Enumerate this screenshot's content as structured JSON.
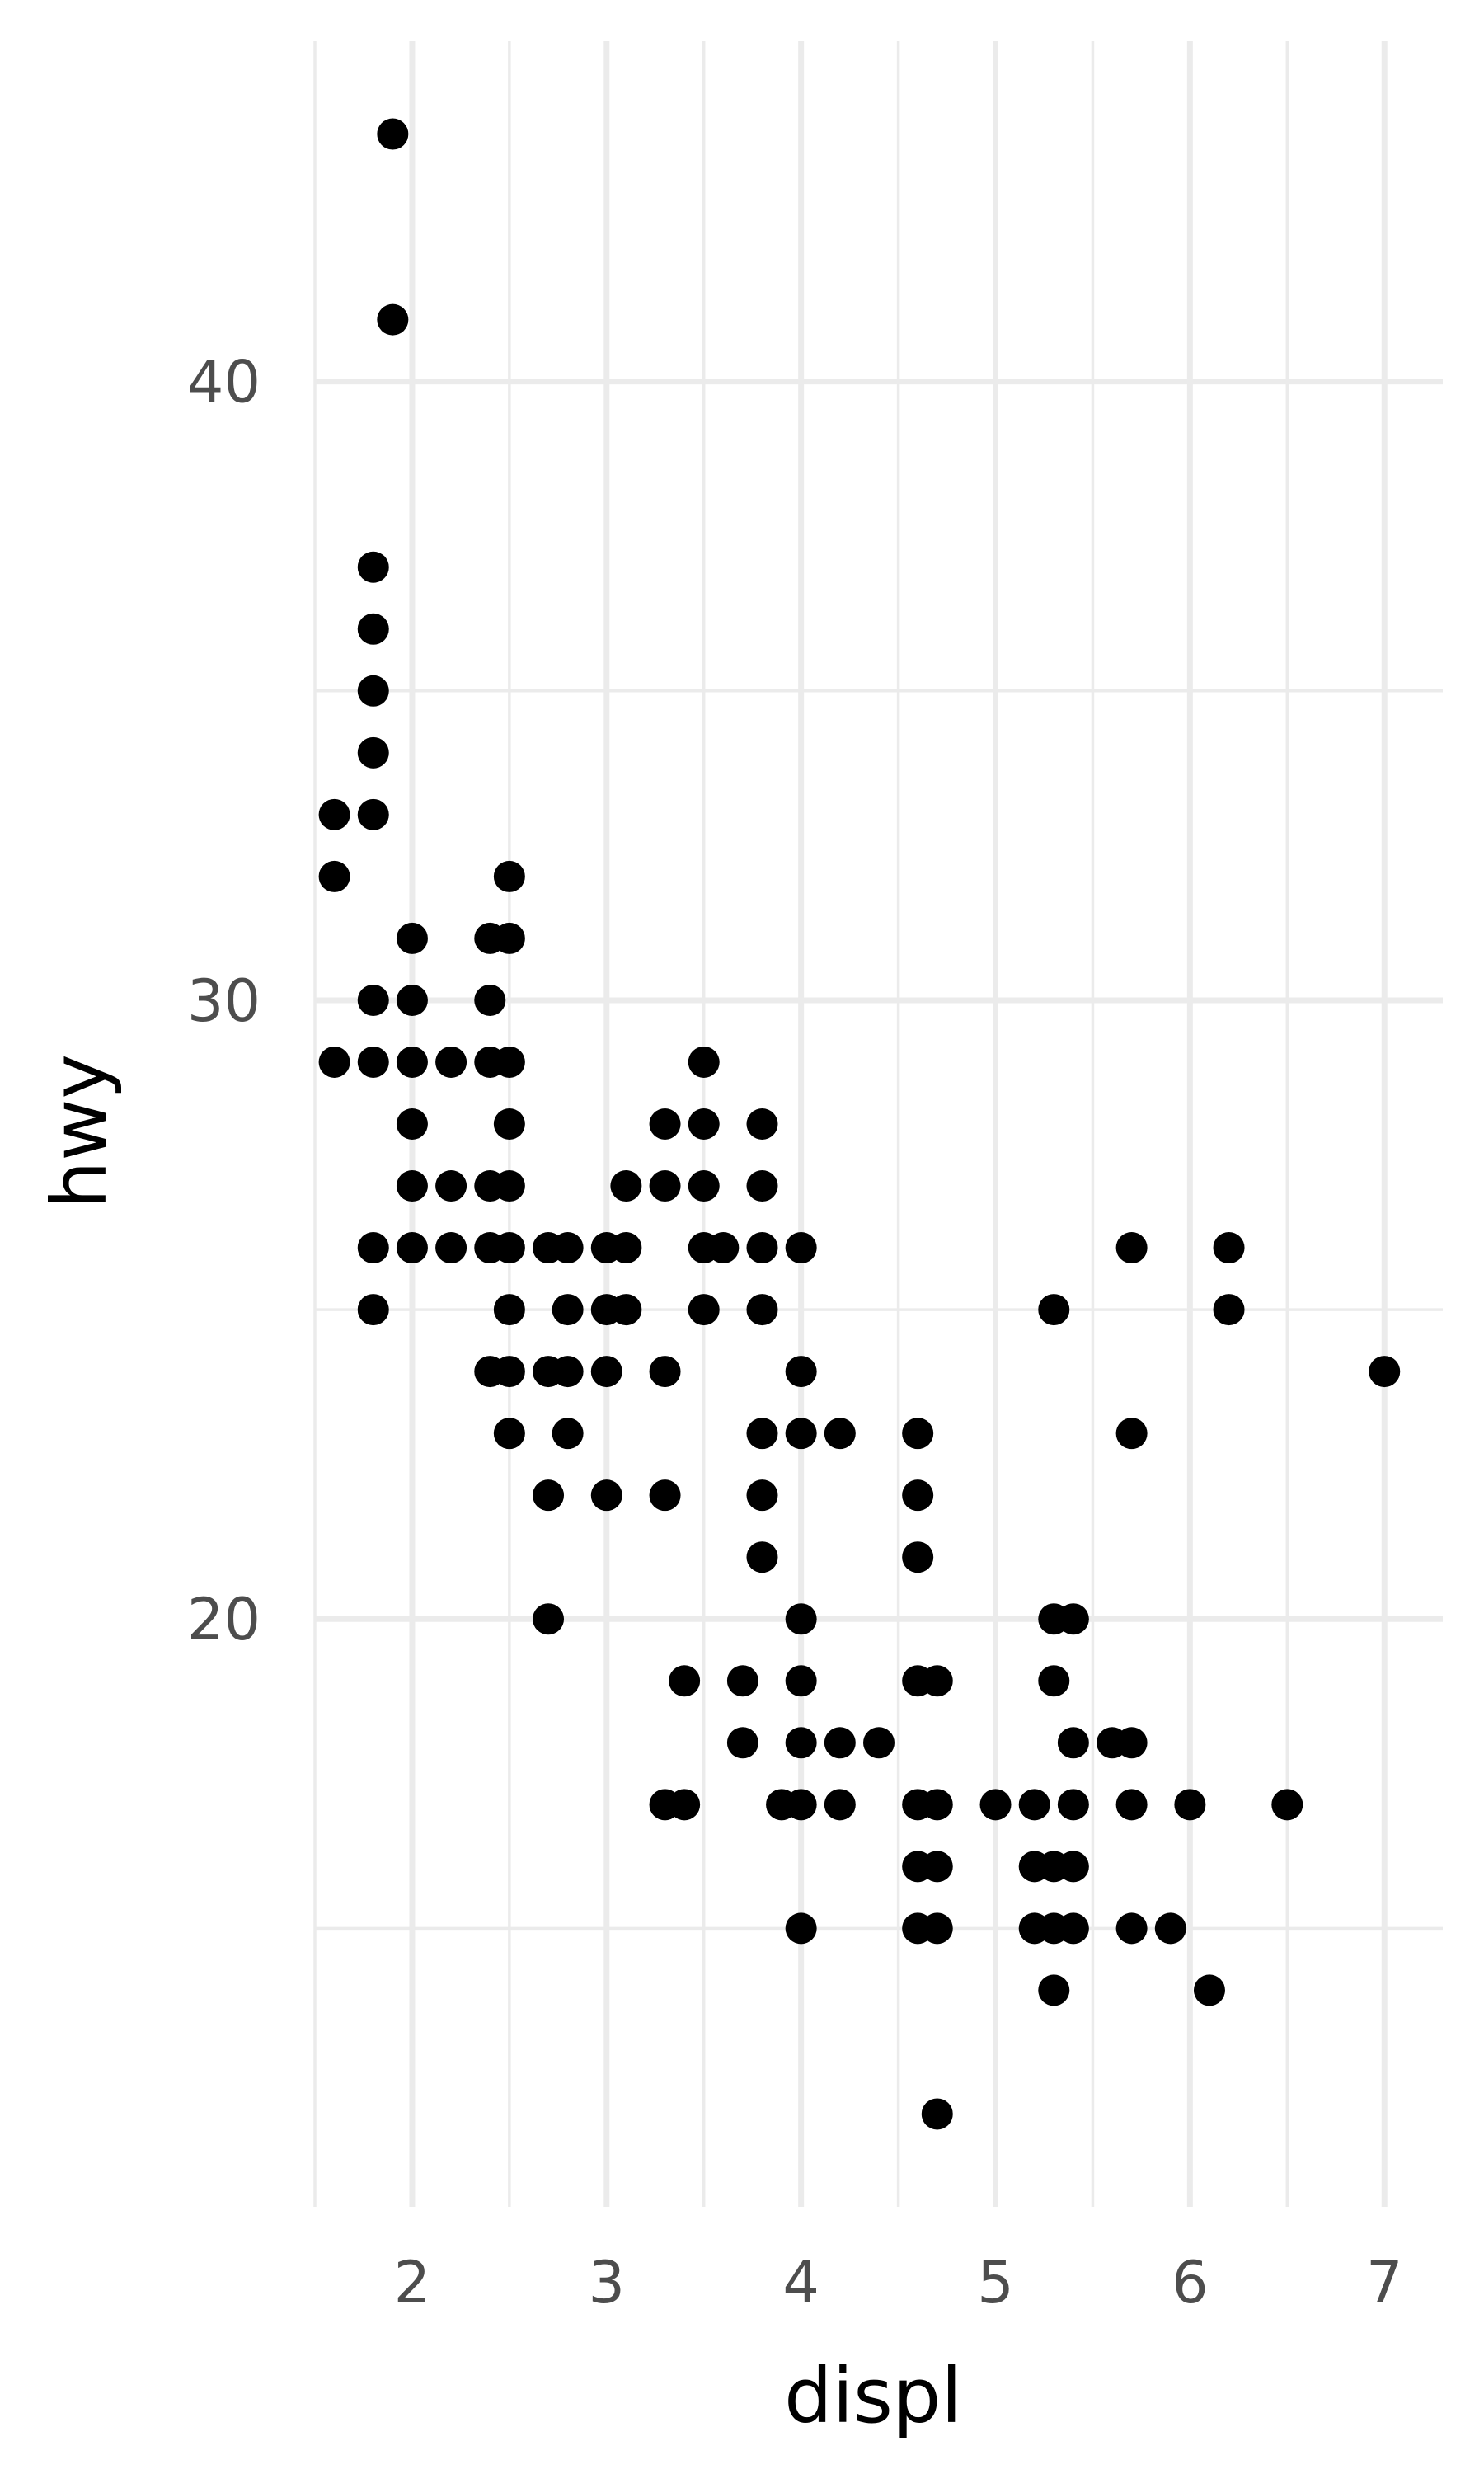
{
  "chart_data": {
    "type": "scatter",
    "title": "",
    "xlabel": "displ",
    "ylabel": "hwy",
    "xlim": [
      1.5,
      7.3
    ],
    "ylim": [
      10.5,
      45.5
    ],
    "x_ticks": [
      2,
      3,
      4,
      5,
      6,
      7
    ],
    "x_tick_labels": [
      "2",
      "3",
      "4",
      "5",
      "6",
      "7"
    ],
    "y_ticks": [
      20,
      30,
      40
    ],
    "y_tick_labels": [
      "20",
      "30",
      "40"
    ],
    "x_minor_ticks": [
      1.5,
      2.5,
      3.5,
      4.5,
      5.5,
      6.5
    ],
    "y_minor_ticks": [
      15,
      25,
      35
    ],
    "grid": true,
    "legend": "none",
    "colors": {
      "background": "#ffffff",
      "grid": "#ebebeb",
      "points": "#000000",
      "tick_text": "#4d4d4d",
      "axis_title": "#000000"
    },
    "series": [
      {
        "points": [
          [
            1.6,
            32
          ],
          [
            1.6,
            33
          ],
          [
            1.6,
            29
          ],
          [
            1.8,
            29
          ],
          [
            1.8,
            30
          ],
          [
            1.8,
            33
          ],
          [
            1.8,
            34
          ],
          [
            1.8,
            35
          ],
          [
            1.8,
            36
          ],
          [
            1.8,
            37
          ],
          [
            1.8,
            26
          ],
          [
            1.8,
            25
          ],
          [
            1.9,
            41
          ],
          [
            1.9,
            44
          ],
          [
            2.0,
            31
          ],
          [
            2.0,
            30
          ],
          [
            2.0,
            29
          ],
          [
            2.0,
            28
          ],
          [
            2.0,
            27
          ],
          [
            2.0,
            26
          ],
          [
            2.2,
            29
          ],
          [
            2.2,
            27
          ],
          [
            2.2,
            26
          ],
          [
            2.4,
            31
          ],
          [
            2.4,
            30
          ],
          [
            2.4,
            29
          ],
          [
            2.4,
            27
          ],
          [
            2.4,
            26
          ],
          [
            2.4,
            24
          ],
          [
            2.5,
            32
          ],
          [
            2.5,
            31
          ],
          [
            2.5,
            29
          ],
          [
            2.5,
            28
          ],
          [
            2.5,
            27
          ],
          [
            2.5,
            26
          ],
          [
            2.5,
            25
          ],
          [
            2.5,
            24
          ],
          [
            2.5,
            23
          ],
          [
            2.7,
            26
          ],
          [
            2.7,
            24
          ],
          [
            2.7,
            22
          ],
          [
            2.7,
            20
          ],
          [
            2.8,
            26
          ],
          [
            2.8,
            25
          ],
          [
            2.8,
            24
          ],
          [
            2.8,
            23
          ],
          [
            3.0,
            26
          ],
          [
            3.0,
            25
          ],
          [
            3.0,
            24
          ],
          [
            3.0,
            22
          ],
          [
            3.1,
            27
          ],
          [
            3.1,
            26
          ],
          [
            3.1,
            25
          ],
          [
            3.3,
            28
          ],
          [
            3.3,
            27
          ],
          [
            3.3,
            24
          ],
          [
            3.3,
            22
          ],
          [
            3.3,
            17
          ],
          [
            3.4,
            19
          ],
          [
            3.4,
            17
          ],
          [
            3.5,
            29
          ],
          [
            3.5,
            28
          ],
          [
            3.5,
            27
          ],
          [
            3.5,
            26
          ],
          [
            3.5,
            25
          ],
          [
            3.6,
            26
          ],
          [
            3.7,
            19
          ],
          [
            3.7,
            18
          ],
          [
            3.8,
            28
          ],
          [
            3.8,
            27
          ],
          [
            3.8,
            26
          ],
          [
            3.8,
            25
          ],
          [
            3.8,
            23
          ],
          [
            3.8,
            22
          ],
          [
            3.8,
            21
          ],
          [
            3.9,
            17
          ],
          [
            4.0,
            26
          ],
          [
            4.0,
            24
          ],
          [
            4.0,
            23
          ],
          [
            4.0,
            20
          ],
          [
            4.0,
            19
          ],
          [
            4.0,
            18
          ],
          [
            4.0,
            17
          ],
          [
            4.0,
            15
          ],
          [
            4.2,
            23
          ],
          [
            4.2,
            18
          ],
          [
            4.2,
            17
          ],
          [
            4.4,
            18
          ],
          [
            4.6,
            23
          ],
          [
            4.6,
            22
          ],
          [
            4.6,
            21
          ],
          [
            4.6,
            19
          ],
          [
            4.6,
            17
          ],
          [
            4.6,
            16
          ],
          [
            4.6,
            15
          ],
          [
            4.7,
            19
          ],
          [
            4.7,
            17
          ],
          [
            4.7,
            16
          ],
          [
            4.7,
            15
          ],
          [
            4.7,
            12
          ],
          [
            5.0,
            17
          ],
          [
            5.2,
            17
          ],
          [
            5.2,
            16
          ],
          [
            5.2,
            15
          ],
          [
            5.3,
            25
          ],
          [
            5.3,
            20
          ],
          [
            5.3,
            19
          ],
          [
            5.3,
            16
          ],
          [
            5.3,
            15
          ],
          [
            5.3,
            14
          ],
          [
            5.4,
            20
          ],
          [
            5.4,
            18
          ],
          [
            5.4,
            17
          ],
          [
            5.4,
            16
          ],
          [
            5.4,
            15
          ],
          [
            5.6,
            18
          ],
          [
            5.7,
            26
          ],
          [
            5.7,
            23
          ],
          [
            5.7,
            18
          ],
          [
            5.7,
            17
          ],
          [
            5.7,
            15
          ],
          [
            5.9,
            15
          ],
          [
            6.0,
            17
          ],
          [
            6.1,
            14
          ],
          [
            6.2,
            26
          ],
          [
            6.2,
            25
          ],
          [
            6.5,
            17
          ],
          [
            7.0,
            24
          ]
        ]
      }
    ]
  }
}
